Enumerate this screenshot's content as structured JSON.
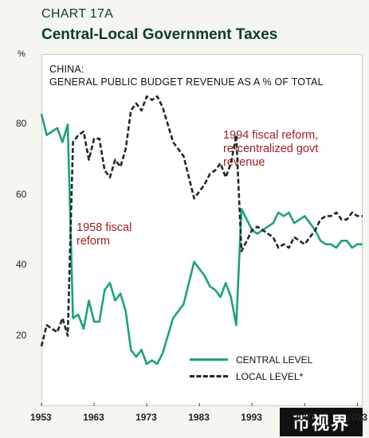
{
  "header": {
    "label": "CHART 17A",
    "title": "Central-Local Government Taxes",
    "unit": "%"
  },
  "subtitle": {
    "line1": "CHINA:",
    "line2": "GENERAL PUBLIC BUDGET REVENUE AS A % OF TOTAL"
  },
  "annotations": {
    "reform_1994": [
      "1994 fiscal reform,",
      "re-centralized govt",
      "revenue"
    ],
    "reform_1958": [
      "1958 fiscal",
      "reform"
    ]
  },
  "legend": {
    "central": "CENTRAL LEVEL",
    "local": "LOCAL LEVEL*"
  },
  "watermark": "币视界",
  "colors": {
    "central": "#1aa37a",
    "local": "#1b2b24",
    "annotation": "#a31d22",
    "title": "#0f3b2a"
  },
  "chart_data": {
    "type": "line",
    "title": "Central-Local Government Taxes",
    "xlim": [
      1953,
      2014
    ],
    "ylim": [
      0,
      100
    ],
    "x_ticks": [
      1953,
      1963,
      1973,
      1983,
      1993,
      2003,
      2013
    ],
    "y_ticks": [
      20,
      40,
      60,
      80
    ],
    "x": [
      1953,
      1954,
      1955,
      1956,
      1957,
      1958,
      1959,
      1960,
      1961,
      1962,
      1963,
      1964,
      1965,
      1966,
      1967,
      1968,
      1969,
      1970,
      1971,
      1972,
      1973,
      1974,
      1975,
      1976,
      1977,
      1978,
      1979,
      1980,
      1981,
      1982,
      1983,
      1984,
      1985,
      1986,
      1987,
      1988,
      1989,
      1990,
      1991,
      1992,
      1993,
      1994,
      1995,
      1996,
      1997,
      1998,
      1999,
      2000,
      2001,
      2002,
      2003,
      2004,
      2005,
      2006,
      2007,
      2008,
      2009,
      2010,
      2011,
      2012,
      2013,
      2014
    ],
    "series": [
      {
        "name": "CENTRAL LEVEL",
        "style": "solid",
        "values": [
          83,
          77,
          78,
          79,
          75,
          80,
          25,
          26,
          22,
          30,
          24,
          24,
          33,
          35,
          30,
          32,
          27,
          16,
          14,
          16,
          12,
          13,
          12,
          15,
          20,
          25,
          27,
          29,
          35,
          41,
          39,
          37,
          34,
          33,
          31,
          35,
          31,
          23,
          56,
          53,
          50,
          49,
          50,
          51,
          52,
          55,
          54,
          55,
          52,
          53,
          54,
          52,
          50,
          47,
          46,
          46,
          45,
          47,
          47,
          45,
          46,
          46
        ]
      },
      {
        "name": "LOCAL LEVEL*",
        "style": "dashed",
        "values": [
          17,
          23,
          22,
          21,
          25,
          20,
          75,
          77,
          78,
          70,
          76,
          76,
          67,
          65,
          70,
          68,
          73,
          84,
          86,
          84,
          88,
          87,
          88,
          85,
          80,
          75,
          73,
          71,
          65,
          59,
          61,
          63,
          66,
          67,
          69,
          65,
          69,
          77,
          44,
          47,
          50,
          51,
          50,
          49,
          48,
          45,
          46,
          45,
          48,
          47,
          46,
          48,
          50,
          53,
          54,
          54,
          55,
          53,
          53,
          55,
          54,
          54
        ]
      }
    ]
  }
}
